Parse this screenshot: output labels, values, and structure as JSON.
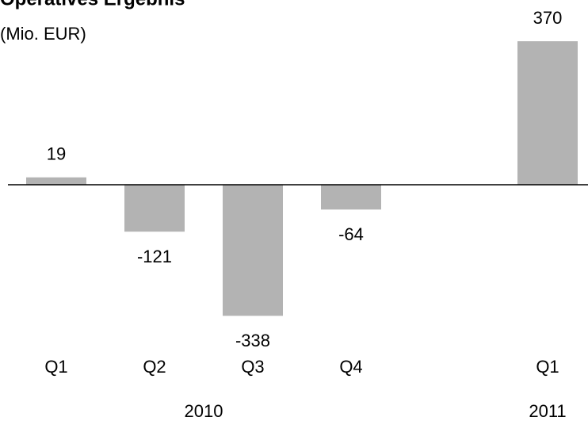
{
  "chart_data": {
    "type": "bar",
    "title": "Operatives Ergebnis",
    "subtitle": "(Mio. EUR)",
    "categories": [
      "Q1",
      "Q2",
      "Q3",
      "Q4",
      null,
      "Q1"
    ],
    "values": [
      19,
      -121,
      -338,
      -64,
      null,
      370
    ],
    "years": [
      "2010",
      "2011"
    ],
    "color": "#b3b3b3"
  }
}
